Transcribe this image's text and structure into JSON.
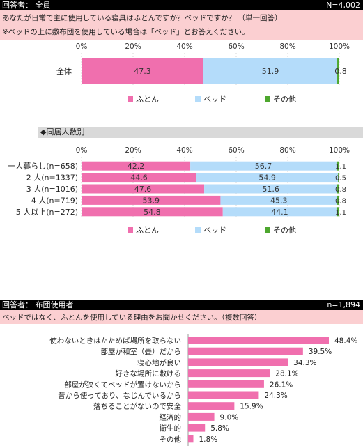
{
  "section1": {
    "header_left": "回答者： 全員",
    "header_right": "N=4,002",
    "question": "あなたが日常で主に使用している寝具はふとんですか？ベッドですか？ （単一回答）",
    "note": "※ベッドの上に敷布団を使用している場合は「ベッド」とお答えください。",
    "group_title": "◆同居人数別"
  },
  "section2": {
    "header_left": "回答者： 布団使用者",
    "header_right": "n=1,894",
    "question": "ベッドではなく、ふとんを使用している理由をお聞かせください。（複数回答）"
  },
  "colors": {
    "futon": "#f06fae",
    "bed": "#b4dcfa",
    "other": "#4ea72e",
    "reason_bar": "#f06fae"
  },
  "chart_data": [
    {
      "type": "bar",
      "orientation": "horizontal-stacked-100",
      "axis_ticks": [
        "0%",
        "20%",
        "40%",
        "60%",
        "80%",
        "100%"
      ],
      "xlim": [
        0,
        100
      ],
      "categories": [
        "全体"
      ],
      "series": [
        {
          "name": "ふとん",
          "values": [
            47.3
          ],
          "labels": [
            "47.3"
          ]
        },
        {
          "name": "ベッド",
          "values": [
            51.9
          ],
          "labels": [
            "51.9"
          ]
        },
        {
          "name": "その他",
          "values": [
            0.8
          ],
          "labels": [
            "0.8"
          ]
        }
      ],
      "legend": "bottom"
    },
    {
      "type": "bar",
      "orientation": "horizontal-stacked-100",
      "axis_ticks": [
        "0%",
        "20%",
        "40%",
        "60%",
        "80%",
        "100%"
      ],
      "xlim": [
        0,
        100
      ],
      "categories": [
        "一人暮らし(n=658)",
        "2 人(n=1337)",
        "3 人(n=1016)",
        "4 人(n=719)",
        "5 人以上(n=272)"
      ],
      "series": [
        {
          "name": "ふとん",
          "values": [
            42.2,
            44.6,
            47.6,
            53.9,
            54.8
          ],
          "labels": [
            "42.2",
            "44.6",
            "47.6",
            "53.9",
            "54.8"
          ]
        },
        {
          "name": "ベッド",
          "values": [
            56.7,
            54.9,
            51.6,
            45.3,
            44.1
          ],
          "labels": [
            "56.7",
            "54.9",
            "51.6",
            "45.3",
            "44.1"
          ]
        },
        {
          "name": "その他",
          "values": [
            1.1,
            0.5,
            0.8,
            0.8,
            1.1
          ],
          "labels": [
            "1.1",
            "0.5",
            "0.8",
            "0.8",
            "1.1"
          ]
        }
      ],
      "legend": "bottom"
    },
    {
      "type": "bar",
      "orientation": "horizontal",
      "categories": [
        "使わないときはたためば場所を取らない",
        "部屋が和室（畳）だから",
        "寝心地が良い",
        "好きな場所に敷ける",
        "部屋が狭くてベッドが置けないから",
        "昔から使っており、なじんでいるから",
        "落ちることがないので安全",
        "経済的",
        "衛生的",
        "その他"
      ],
      "values": [
        48.4,
        39.5,
        34.3,
        28.1,
        26.1,
        24.3,
        15.9,
        9.0,
        5.8,
        1.8
      ],
      "labels": [
        "48.4%",
        "39.5%",
        "34.3%",
        "28.1%",
        "26.1%",
        "24.3%",
        "15.9%",
        "9.0%",
        "5.8%",
        "1.8%"
      ]
    }
  ]
}
